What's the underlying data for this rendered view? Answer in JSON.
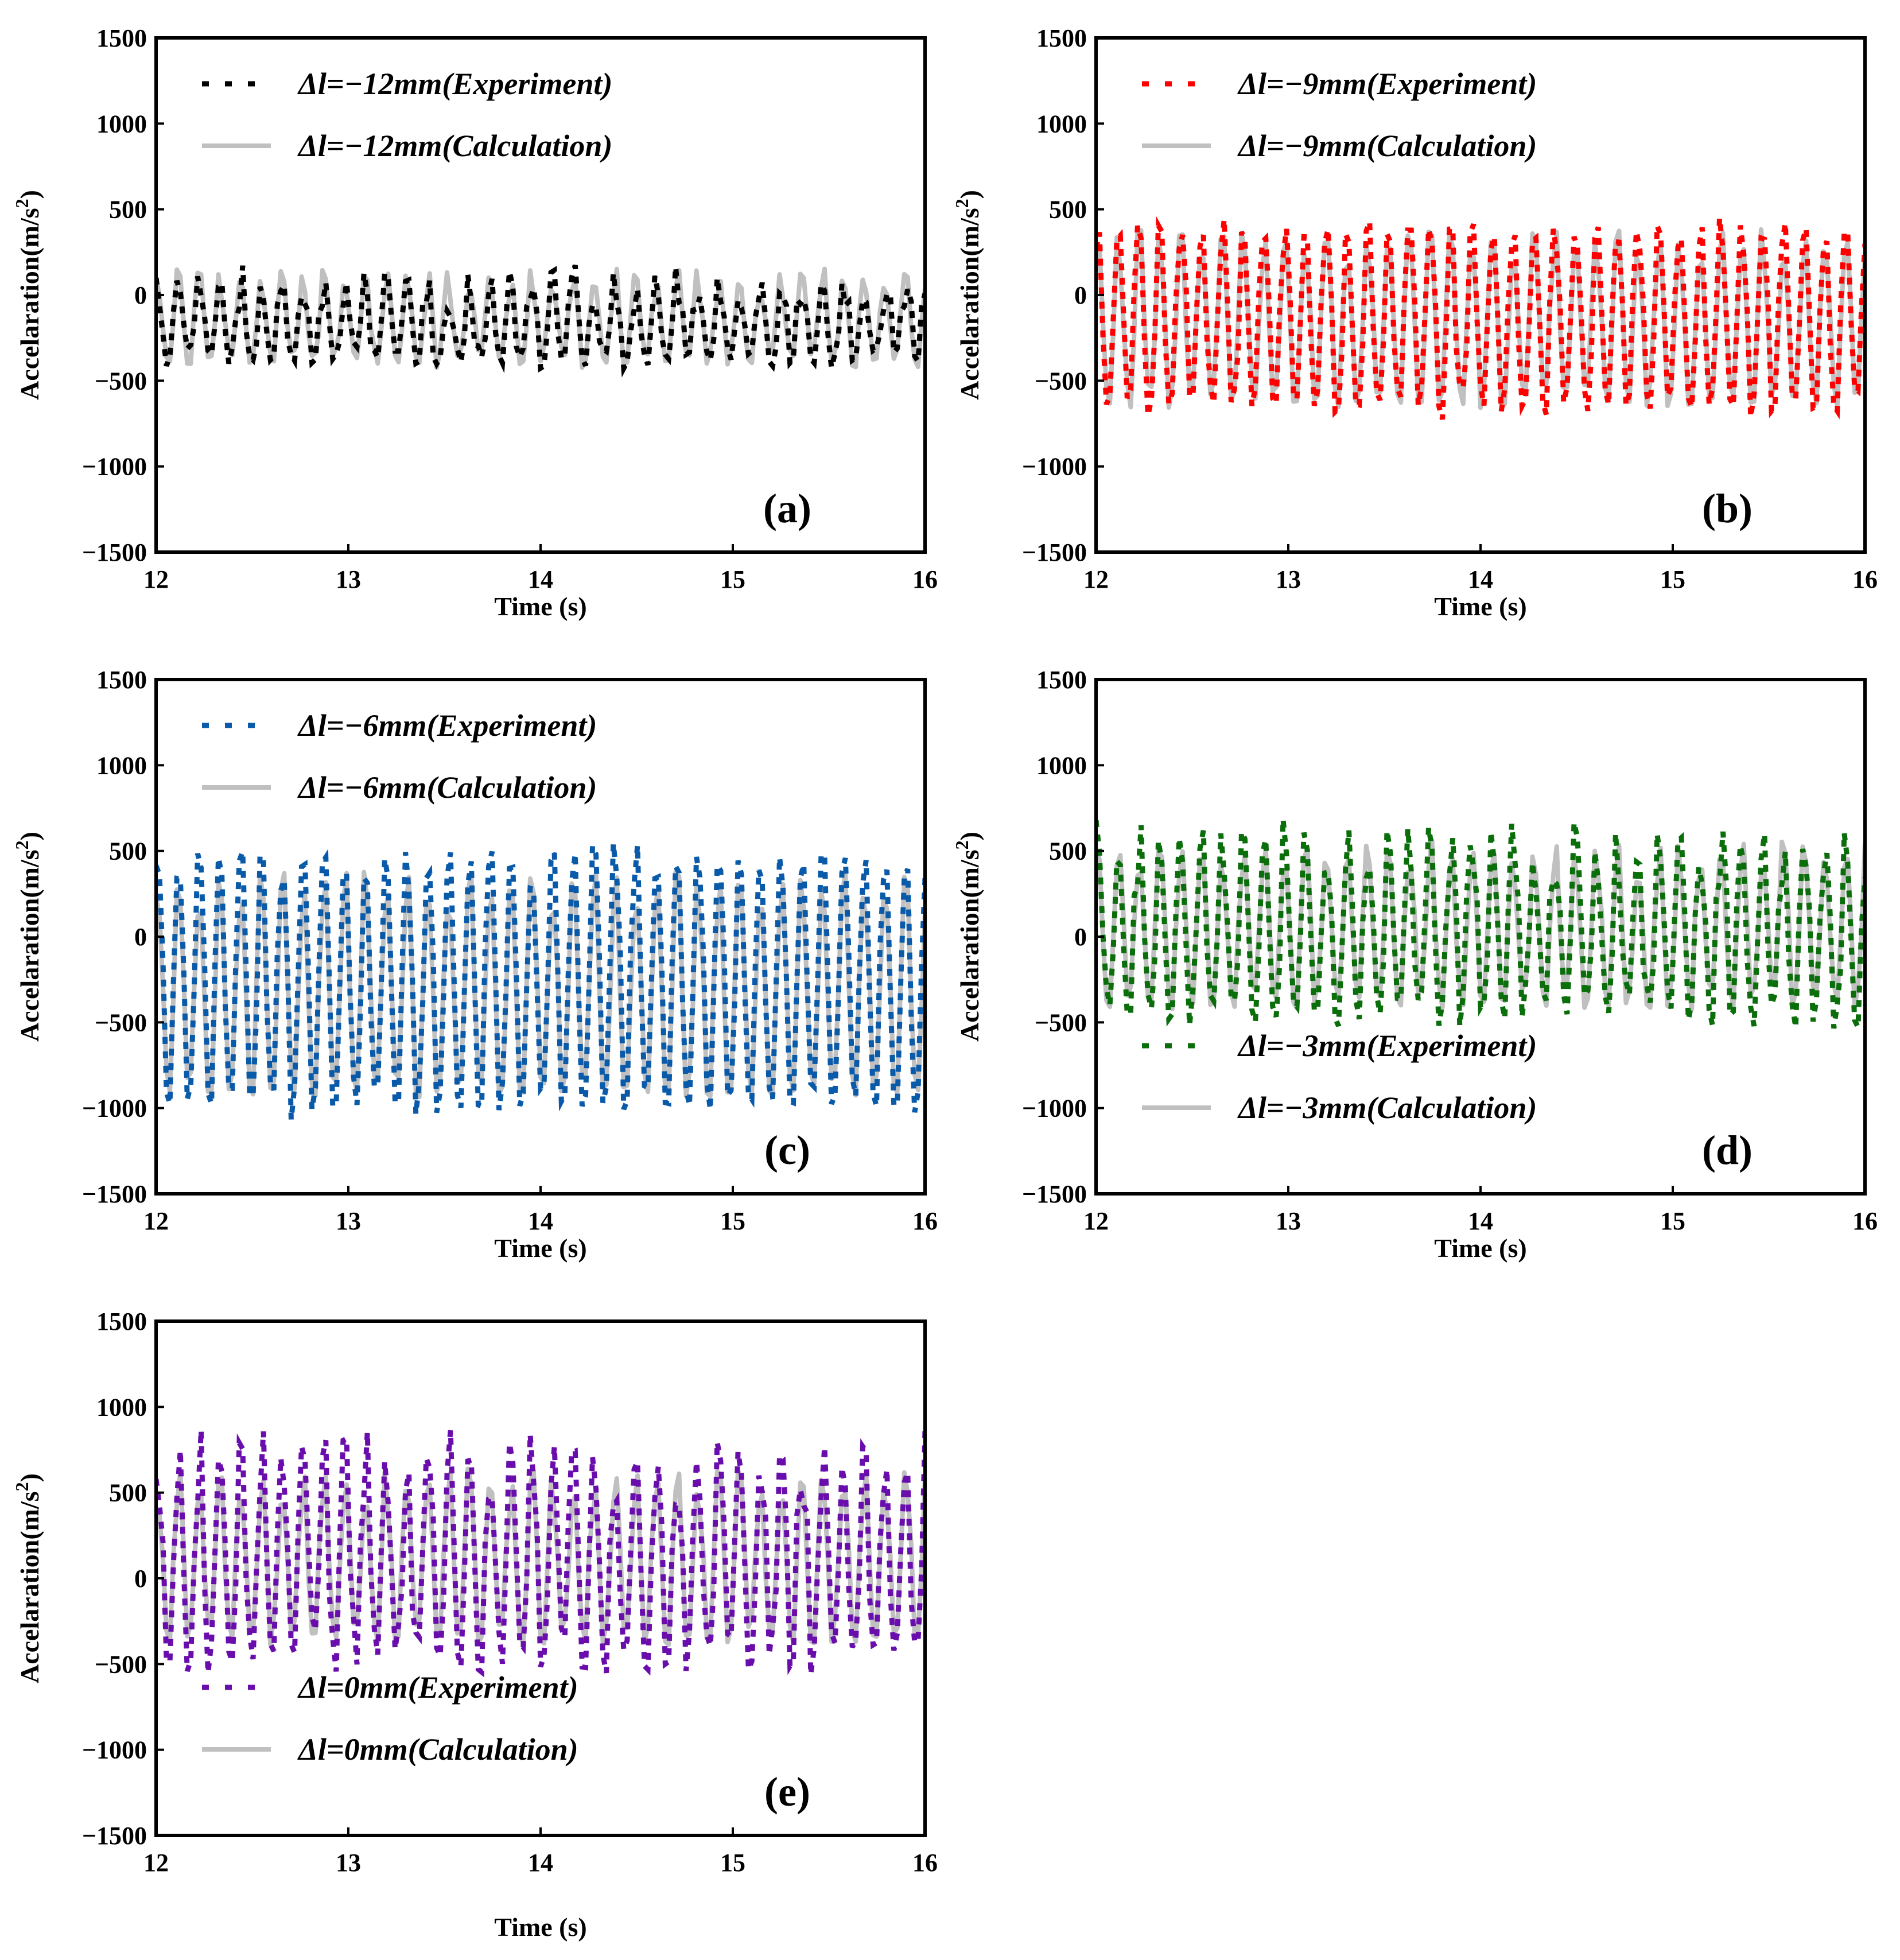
{
  "figure": {
    "description_units": "Acceleration in m/s^2 versus time in s"
  },
  "chart_data": [
    {
      "id": "a",
      "type": "line",
      "panel_label": "(a)",
      "xlabel": "Time (s)",
      "ylabel": "Accelaration(m/s2)",
      "ylabel_base": "Accelaration(m/s",
      "ylabel_sup": "2",
      "ylabel_tail": ")",
      "xlim": [
        12,
        16
      ],
      "ylim": [
        -1500,
        1500
      ],
      "xticks": [
        12,
        13,
        14,
        15,
        16
      ],
      "yticks": [
        1500,
        1000,
        500,
        0,
        -500,
        -1000,
        -1500
      ],
      "ytick_labels": [
        "1500",
        "1000",
        "500",
        "0",
        "−500",
        "−1000",
        "−1500"
      ],
      "legend_position": "top-left",
      "series": [
        {
          "name": "Δl=−12mm(Experiment)",
          "style": "dotted",
          "color": "#000000",
          "freq_hz": 9.3,
          "peaks": [
            -100,
            150
          ],
          "troughs": [
            -300,
            -420
          ],
          "noise": 110,
          "seed": 11,
          "description": "oscillation between about -400 and +200 around -100"
        },
        {
          "name": "Δl=−12mm(Calculation)",
          "style": "solid",
          "color": "#c0c0c0",
          "freq_hz": 9.3,
          "peaks": [
            -40,
            150
          ],
          "troughs": [
            -300,
            -420
          ],
          "noise": 20,
          "seed": 12,
          "description": "periodic oscillation between about -400 and +150"
        }
      ]
    },
    {
      "id": "b",
      "type": "line",
      "panel_label": "(b)",
      "xlabel": "Time (s)",
      "ylabel": "Accelaration(m/s2)",
      "ylabel_base": "Accelaration(m/s",
      "ylabel_sup": "2",
      "ylabel_tail": ")",
      "xlim": [
        12,
        16
      ],
      "ylim": [
        -1500,
        1500
      ],
      "xticks": [
        12,
        13,
        14,
        15,
        16
      ],
      "yticks": [
        1500,
        1000,
        500,
        0,
        -500,
        -1000,
        -1500
      ],
      "ytick_labels": [
        "1500",
        "1000",
        "500",
        "0",
        "−500",
        "−1000",
        "−1500"
      ],
      "legend_position": "top-left",
      "series": [
        {
          "name": "Δl=−9mm(Experiment)",
          "style": "dotted",
          "color": "#ff0000",
          "freq_hz": 9.3,
          "peaks": [
            250,
            420
          ],
          "troughs": [
            -560,
            -690
          ],
          "noise": 160,
          "seed": 21,
          "description": "oscillation between about -690 and +430 centered near 0"
        },
        {
          "name": "Δl=−9mm(Calculation)",
          "style": "solid",
          "color": "#c0c0c0",
          "freq_hz": 9.3,
          "peaks": [
            150,
            380
          ],
          "troughs": [
            -500,
            -660
          ],
          "noise": 30,
          "seed": 22,
          "description": "periodic oscillation between about -660 and +380"
        }
      ]
    },
    {
      "id": "c",
      "type": "line",
      "panel_label": "(c)",
      "xlabel": "Time (s)",
      "ylabel": "Accelaration(m/s2)",
      "ylabel_base": "Accelaration(m/s",
      "ylabel_sup": "2",
      "ylabel_tail": ")",
      "xlim": [
        12,
        16
      ],
      "ylim": [
        -1500,
        1500
      ],
      "xticks": [
        12,
        13,
        14,
        15,
        16
      ],
      "yticks": [
        1500,
        1000,
        500,
        0,
        -500,
        -1000,
        -1500
      ],
      "ytick_labels": [
        "1500",
        "1000",
        "500",
        "0",
        "−500",
        "−1000",
        "−1500"
      ],
      "legend_position": "top-left",
      "series": [
        {
          "name": "Δl=−6mm(Experiment)",
          "style": "dotted",
          "color": "#0a5aaa",
          "freq_hz": 9.3,
          "peaks": [
            300,
            500
          ],
          "troughs": [
            -850,
            -1040
          ],
          "noise": 170,
          "seed": 31,
          "description": "oscillation between about -1040 and +520 centered near 0"
        },
        {
          "name": "Δl=−6mm(Calculation)",
          "style": "solid",
          "color": "#c0c0c0",
          "freq_hz": 9.3,
          "peaks": [
            100,
            380
          ],
          "troughs": [
            -780,
            -930
          ],
          "noise": 30,
          "seed": 32,
          "description": "periodic oscillation between about -930 and +380"
        }
      ]
    },
    {
      "id": "d",
      "type": "line",
      "panel_label": "(d)",
      "xlabel": "Time (s)",
      "ylabel": "Accelaration(m/s2)",
      "ylabel_base": "Accelaration(m/s",
      "ylabel_sup": "2",
      "ylabel_tail": ")",
      "xlim": [
        12,
        16
      ],
      "ylim": [
        -1500,
        1500
      ],
      "xticks": [
        12,
        13,
        14,
        15,
        16
      ],
      "yticks": [
        1500,
        1000,
        500,
        0,
        -500,
        -1000,
        -1500
      ],
      "ytick_labels": [
        "1500",
        "1000",
        "500",
        "0",
        "−500",
        "−1000",
        "−1500"
      ],
      "legend_position": "bottom-left",
      "series": [
        {
          "name": "Δl=−3mm(Experiment)",
          "style": "dotted",
          "color": "#0a6e0a",
          "freq_hz": 9.3,
          "peaks": [
            300,
            680
          ],
          "troughs": [
            -300,
            -510
          ],
          "noise": 170,
          "seed": 41,
          "description": "oscillation between about -500 and +680 centered near 0"
        },
        {
          "name": "Δl=−3mm(Calculation)",
          "style": "solid",
          "color": "#c0c0c0",
          "freq_hz": 9.3,
          "peaks": [
            300,
            560
          ],
          "troughs": [
            -260,
            -420
          ],
          "noise": 30,
          "seed": 42,
          "description": "periodic oscillation between about -420 and +560"
        }
      ]
    },
    {
      "id": "e",
      "type": "line",
      "panel_label": "(e)",
      "xlabel": "Time (s)",
      "ylabel": "Accelaration(m/s2)",
      "ylabel_base": "Accelaration(m/s",
      "ylabel_sup": "2",
      "ylabel_tail": ")",
      "xlim": [
        12,
        16
      ],
      "ylim": [
        -1500,
        1500
      ],
      "xticks": [
        12,
        13,
        14,
        15,
        16
      ],
      "yticks": [
        1500,
        1000,
        500,
        0,
        -500,
        -1000,
        -1500
      ],
      "ytick_labels": [
        "1500",
        "1000",
        "500",
        "0",
        "−500",
        "−1000",
        "−1500"
      ],
      "legend_position": "bottom-left",
      "series": [
        {
          "name": "Δl=0mm(Experiment)",
          "style": "dotted",
          "color": "#6a0dad",
          "freq_hz": 9.3,
          "peaks": [
            400,
            860
          ],
          "troughs": [
            -250,
            -560
          ],
          "noise": 180,
          "seed": 51,
          "description": "oscillation between about -560 and +860 centered near 0"
        },
        {
          "name": "Δl=0mm(Calculation)",
          "style": "solid",
          "color": "#c0c0c0",
          "freq_hz": 9.3,
          "peaks": [
            350,
            640
          ],
          "troughs": [
            -220,
            -380
          ],
          "noise": 30,
          "seed": 52,
          "description": "periodic oscillation between about -380 and +640"
        }
      ]
    }
  ]
}
